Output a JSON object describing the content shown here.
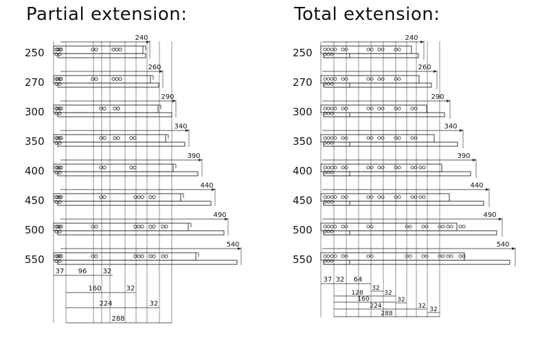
{
  "left_panel": {
    "title": "Partial extension:",
    "rows": [
      {
        "size": "250",
        "travel": "240",
        "holes": [
          [
            97,
            2
          ],
          [
            148,
            2
          ],
          [
            178,
            3
          ]
        ]
      },
      {
        "size": "270",
        "travel": "260",
        "holes": [
          [
            97,
            2
          ],
          [
            148,
            2
          ],
          [
            178,
            3
          ]
        ]
      },
      {
        "size": "300",
        "travel": "290",
        "holes": [
          [
            97,
            2
          ],
          [
            160,
            2
          ],
          [
            180,
            2
          ]
        ]
      },
      {
        "size": "350",
        "travel": "340",
        "holes": [
          [
            97,
            2
          ],
          [
            160,
            2
          ],
          [
            180,
            2
          ],
          [
            204,
            2
          ]
        ]
      },
      {
        "size": "400",
        "travel": "390",
        "holes": [
          [
            97,
            2
          ],
          [
            160,
            2
          ],
          [
            204,
            2
          ]
        ]
      },
      {
        "size": "450",
        "travel": "440",
        "holes": [
          [
            97,
            2
          ],
          [
            160,
            2
          ],
          [
            210,
            3
          ],
          [
            232,
            2
          ]
        ]
      },
      {
        "size": "500",
        "travel": "490",
        "holes": [
          [
            97,
            2
          ],
          [
            148,
            2
          ],
          [
            210,
            3
          ],
          [
            232,
            2
          ],
          [
            250,
            2
          ]
        ]
      },
      {
        "size": "550",
        "travel": "540",
        "holes": [
          [
            97,
            2
          ],
          [
            148,
            2
          ],
          [
            210,
            3
          ],
          [
            232,
            2
          ],
          [
            250,
            2
          ]
        ]
      }
    ],
    "dims_row1": [
      "37",
      "96",
      "32"
    ],
    "dims_stack": [
      "160",
      "32",
      "224",
      "32",
      "288"
    ]
  },
  "right_panel": {
    "title": "Total extension:",
    "rows": [
      {
        "size": "250",
        "travel": "240"
      },
      {
        "size": "270",
        "travel": "260"
      },
      {
        "size": "300",
        "travel": "290"
      },
      {
        "size": "350",
        "travel": "340"
      },
      {
        "size": "400",
        "travel": "390"
      },
      {
        "size": "450",
        "travel": "440"
      },
      {
        "size": "500",
        "travel": "490"
      },
      {
        "size": "550",
        "travel": "540"
      }
    ],
    "dims_row1": [
      "37",
      "32",
      "64"
    ],
    "dims_stack": [
      "32",
      "128",
      "32",
      "160",
      "32",
      "224",
      "32",
      "288",
      "32"
    ]
  }
}
